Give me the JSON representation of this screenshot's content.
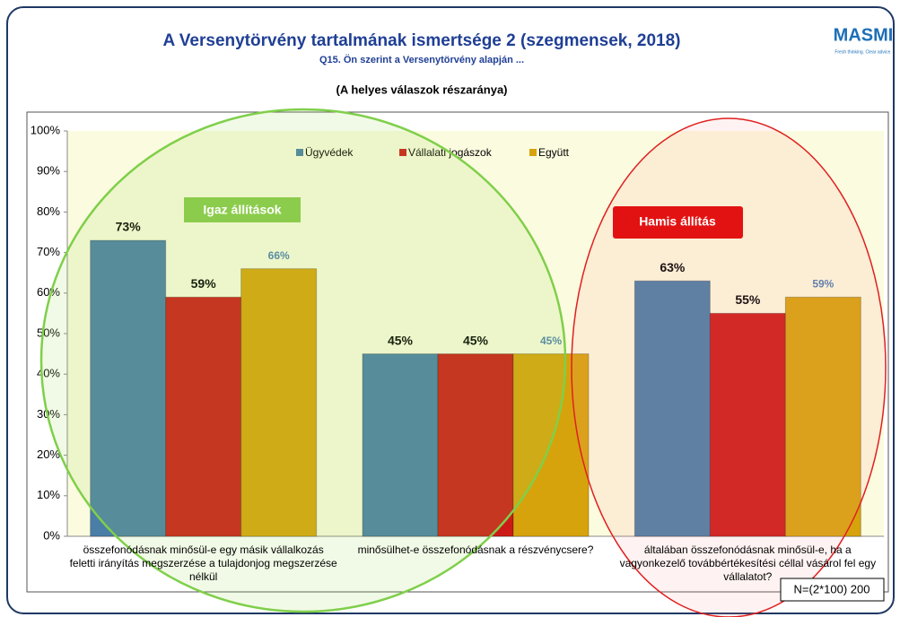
{
  "chart_data": {
    "type": "bar",
    "title": "A Versenytörvény tartalmának ismertsége 2 (szegmensek, 2018)",
    "subtitle": "Q15. Ön szerint a Versenytörvény alapján ...",
    "note": "(A helyes válaszok részaránya)",
    "logo": "MASMI",
    "tagline": "Fresh thinking. Clear advice.",
    "categories": [
      "összefonódásnak minősül-e egy másik vállalkozás feletti irányítás megszerzése a tulajdonjog megszerzése nélkül",
      "minősülhet-e összefonódásnak a részvénycsere?",
      "általában összefonódásnak minősül-e, ha a vagyonkezelő továbbértékesítési céllal vásárol fel egy vállalatot?"
    ],
    "series": [
      {
        "name": "Ügyvédek",
        "color": "#4a7ea6",
        "values": [
          73,
          45,
          63
        ],
        "value_labels": [
          "73%",
          "45%",
          "63%"
        ]
      },
      {
        "name": "Vállalati jogászok",
        "color": "#cc1b17",
        "values": [
          59,
          45,
          55
        ],
        "value_labels": [
          "59%",
          "45%",
          "55%"
        ]
      },
      {
        "name": "Együtt",
        "color": "#d6a30c",
        "values": [
          66,
          45,
          59
        ],
        "value_labels": [
          "66%",
          "45%",
          "59%"
        ]
      }
    ],
    "ylim": [
      0,
      100
    ],
    "yticks": [
      {
        "value": 0,
        "label": "0%"
      },
      {
        "value": 10,
        "label": "10%"
      },
      {
        "value": 20,
        "label": "20%"
      },
      {
        "value": 30,
        "label": "30%"
      },
      {
        "value": 40,
        "label": "40%"
      },
      {
        "value": 50,
        "label": "50%"
      },
      {
        "value": 60,
        "label": "60%"
      },
      {
        "value": 70,
        "label": "70%"
      },
      {
        "value": 80,
        "label": "80%"
      },
      {
        "value": 90,
        "label": "90%"
      },
      {
        "value": 100,
        "label": "100%"
      }
    ],
    "grid": false,
    "legend": "top",
    "annotations": [
      "Igaz állítások",
      "Hamis állítás",
      "N=(2*100) 200"
    ]
  }
}
